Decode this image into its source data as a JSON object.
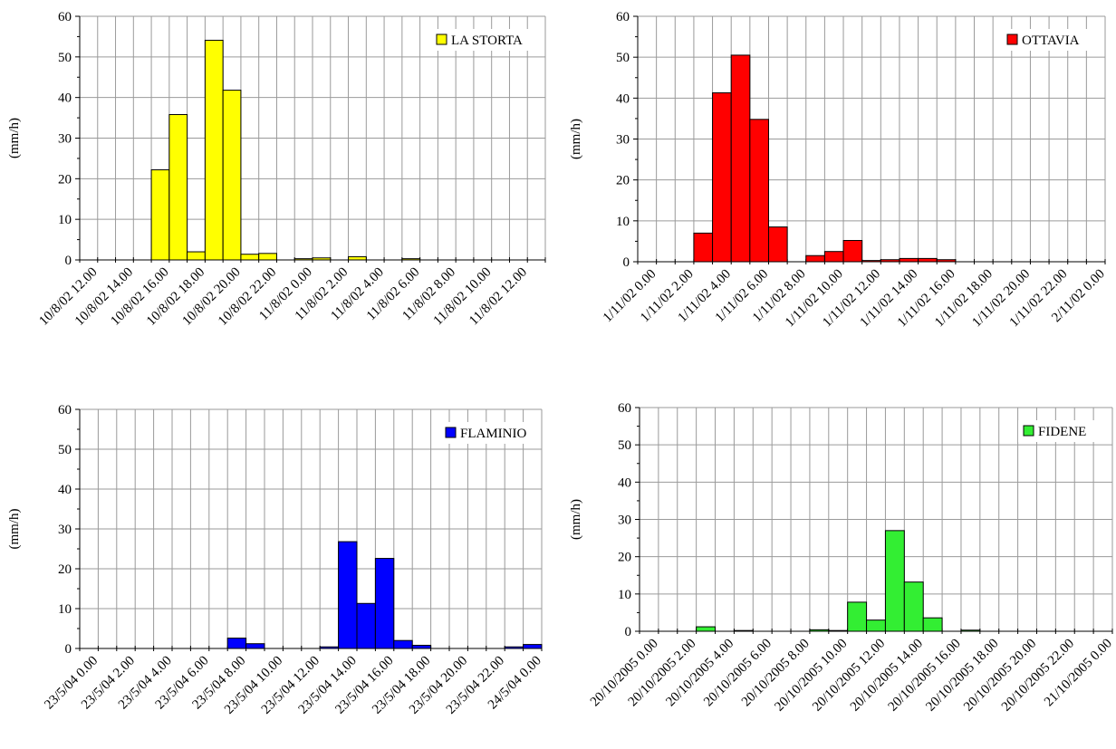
{
  "charts": [
    {
      "type": "bar",
      "legend": "LA STORTA",
      "legend_position": "top-right",
      "ylabel": "(mm/h)",
      "ylim": [
        0,
        60
      ],
      "yticks": [
        "0",
        "10",
        "20",
        "30",
        "40",
        "50",
        "60"
      ],
      "color": "#ffff00",
      "xtick_labels": [
        "10/8/02 12.00",
        "10/8/02 14.00",
        "10/8/02 16.00",
        "10/8/02 18.00",
        "10/8/02 20.00",
        "10/8/02 22.00",
        "11/8/02 0.00",
        "11/8/02 2.00",
        "11/8/02 4.00",
        "11/8/02 6.00",
        "11/8/02 8.00",
        "11/8/02 10.00",
        "11/8/02 12.00"
      ],
      "values": [
        0,
        0,
        0,
        0,
        22.2,
        35.8,
        2.0,
        54.1,
        41.8,
        1.4,
        1.6,
        0,
        0.3,
        0.5,
        0,
        0.8,
        0,
        0,
        0.3,
        0,
        0,
        0,
        0,
        0,
        0,
        0
      ],
      "grid": true
    },
    {
      "type": "bar",
      "legend": "OTTAVIA",
      "legend_position": "top-right",
      "ylabel": "(mm/h)",
      "ylim": [
        0,
        60
      ],
      "yticks": [
        "0",
        "10",
        "20",
        "30",
        "40",
        "50",
        "60"
      ],
      "color": "#ff0000",
      "xtick_labels": [
        "1/11/02 0.00",
        "1/11/02 2.00",
        "1/11/02 4.00",
        "1/11/02 6.00",
        "1/11/02 8.00",
        "1/11/02 10.00",
        "1/11/02 12.00",
        "1/11/02 14.00",
        "1/11/02 16.00",
        "1/11/02 18.00",
        "1/11/02 20.00",
        "1/11/02 22.00",
        "2/11/02 0.00"
      ],
      "values": [
        0,
        0,
        0,
        7.0,
        41.3,
        50.5,
        34.8,
        8.5,
        0,
        1.5,
        2.5,
        5.2,
        0.3,
        0.5,
        0.8,
        0.8,
        0.5,
        0,
        0,
        0,
        0,
        0,
        0,
        0,
        0
      ],
      "grid": true
    },
    {
      "type": "bar",
      "legend": "FLAMINIO",
      "legend_position": "top-right",
      "ylabel": "(mm/h)",
      "ylim": [
        0,
        60
      ],
      "yticks": [
        "0",
        "10",
        "20",
        "30",
        "40",
        "50",
        "60"
      ],
      "color": "#0000ff",
      "xtick_labels": [
        "23/5/04 0.00",
        "23/5/04 2.00",
        "23/5/04 4.00",
        "23/5/04 6.00",
        "23/5/04 8.00",
        "23/5/04 10.00",
        "23/5/04 12.00",
        "23/5/04 14.00",
        "23/5/04 16.00",
        "23/5/04 18.00",
        "23/5/04 20.00",
        "23/5/04 22.00",
        "24/5/04 0.00"
      ],
      "values": [
        0,
        0,
        0,
        0,
        0,
        0,
        0,
        0,
        2.6,
        1.2,
        0,
        0,
        0,
        0.4,
        26.8,
        11.3,
        22.6,
        2.0,
        0.8,
        0,
        0,
        0,
        0,
        0.4,
        1.0
      ],
      "grid": true
    },
    {
      "type": "bar",
      "legend": "FIDENE",
      "legend_position": "top-right",
      "ylabel": "(mm/h)",
      "ylim": [
        0,
        60
      ],
      "yticks": [
        "0",
        "10",
        "20",
        "30",
        "40",
        "50",
        "60"
      ],
      "color": "#33ee33",
      "xtick_labels": [
        "20/10/2005 0.00",
        "20/10/2005 2.00",
        "20/10/2005 4.00",
        "20/10/2005 6.00",
        "20/10/2005 8.00",
        "20/10/2005 10.00",
        "20/10/2005 12.00",
        "20/10/2005 14.00",
        "20/10/2005 16.00",
        "20/10/2005 18.00",
        "20/10/2005 20.00",
        "20/10/2005 22.00",
        "21/10/2005 0.00"
      ],
      "values": [
        0,
        0,
        0,
        1.2,
        0,
        0.2,
        0,
        0,
        0,
        0.4,
        0.2,
        7.8,
        3.0,
        27.0,
        13.2,
        3.6,
        0,
        0.3,
        0,
        0,
        0,
        0,
        0,
        0,
        0
      ],
      "grid": true
    }
  ]
}
